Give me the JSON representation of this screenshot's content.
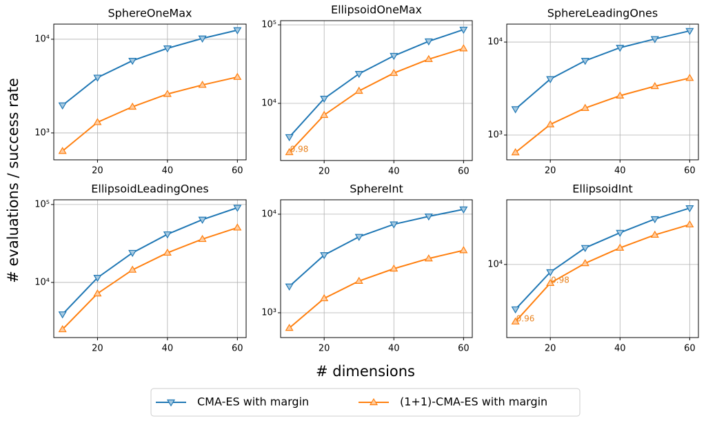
{
  "figure": {
    "xlabel": "# dimensions",
    "ylabel": "# evaluations / success rate"
  },
  "chart_data": [
    {
      "type": "line",
      "title": "SphereOneMax",
      "x": [
        10,
        20,
        30,
        40,
        50,
        60
      ],
      "xlim": [
        7.5,
        62.5
      ],
      "xticks": [
        20,
        40,
        60
      ],
      "ylim": [
        516,
        14500
      ],
      "yticks": [
        {
          "value": 1000,
          "label": "10³"
        },
        {
          "value": 10000,
          "label": "10⁴"
        }
      ],
      "log_y": true,
      "grid": true,
      "series": [
        {
          "name": "CMA-ES with margin",
          "color": "#1f77b4",
          "marker": "triangle-down",
          "values": [
            1970,
            3900,
            5900,
            8000,
            10200,
            12500
          ]
        },
        {
          "name": "(1+1)-CMA-ES with margin",
          "color": "#ff7f0e",
          "marker": "triangle-up",
          "values": [
            640,
            1300,
            1900,
            2600,
            3250,
            3950
          ]
        }
      ]
    },
    {
      "type": "line",
      "title": "EllipsoidOneMax",
      "x": [
        10,
        20,
        30,
        40,
        50,
        60
      ],
      "xlim": [
        7.5,
        62.5
      ],
      "xticks": [
        20,
        40,
        60
      ],
      "ylim": [
        1870,
        113000
      ],
      "yticks": [
        {
          "value": 10000,
          "label": "10⁴"
        },
        {
          "value": 100000,
          "label": "10⁵"
        }
      ],
      "log_y": true,
      "grid": true,
      "series": [
        {
          "name": "CMA-ES with margin",
          "color": "#1f77b4",
          "marker": "triangle-down",
          "values": [
            3720,
            11500,
            23800,
            40300,
            61700,
            87000
          ]
        },
        {
          "name": "(1+1)-CMA-ES with margin",
          "color": "#ff7f0e",
          "marker": "triangle-up",
          "values": [
            2380,
            7100,
            14400,
            24300,
            36500,
            50000
          ]
        }
      ],
      "annotations": [
        {
          "text": "0.98",
          "x": 10,
          "y": 2380
        }
      ]
    },
    {
      "type": "line",
      "title": "SphereLeadingOnes",
      "x": [
        10,
        20,
        30,
        40,
        50,
        60
      ],
      "xlim": [
        7.5,
        62.5
      ],
      "xticks": [
        20,
        40,
        60
      ],
      "ylim": [
        541,
        15600
      ],
      "yticks": [
        {
          "value": 1000,
          "label": "10³"
        },
        {
          "value": 10000,
          "label": "10⁴"
        }
      ],
      "log_y": true,
      "grid": true,
      "series": [
        {
          "name": "CMA-ES with margin",
          "color": "#1f77b4",
          "marker": "triangle-down",
          "values": [
            1900,
            4000,
            6300,
            8700,
            10800,
            13200
          ]
        },
        {
          "name": "(1+1)-CMA-ES with margin",
          "color": "#ff7f0e",
          "marker": "triangle-up",
          "values": [
            650,
            1300,
            1950,
            2650,
            3350,
            4100
          ]
        }
      ]
    },
    {
      "type": "line",
      "title": "EllipsoidLeadingOnes",
      "x": [
        10,
        20,
        30,
        40,
        50,
        60
      ],
      "xlim": [
        7.5,
        62.5
      ],
      "xticks": [
        20,
        40,
        60
      ],
      "ylim": [
        1960,
        115000
      ],
      "yticks": [
        {
          "value": 10000,
          "label": "10⁴"
        },
        {
          "value": 100000,
          "label": "10⁵"
        }
      ],
      "log_y": true,
      "grid": true,
      "series": [
        {
          "name": "CMA-ES with margin",
          "color": "#1f77b4",
          "marker": "triangle-down",
          "values": [
            3900,
            11500,
            24000,
            41500,
            64000,
            91000
          ]
        },
        {
          "name": "(1+1)-CMA-ES with margin",
          "color": "#ff7f0e",
          "marker": "triangle-up",
          "values": [
            2500,
            7200,
            14500,
            24000,
            36000,
            50500
          ]
        }
      ]
    },
    {
      "type": "line",
      "title": "SphereInt",
      "x": [
        10,
        20,
        30,
        40,
        50,
        60
      ],
      "xlim": [
        7.5,
        62.5
      ],
      "xticks": [
        20,
        40,
        60
      ],
      "ylim": [
        560,
        14000
      ],
      "yticks": [
        {
          "value": 1000,
          "label": "10³"
        },
        {
          "value": 10000,
          "label": "10⁴"
        }
      ],
      "log_y": true,
      "grid": true,
      "series": [
        {
          "name": "CMA-ES with margin",
          "color": "#1f77b4",
          "marker": "triangle-down",
          "values": [
            1850,
            3850,
            5900,
            7900,
            9500,
            11200
          ]
        },
        {
          "name": "(1+1)-CMA-ES with margin",
          "color": "#ff7f0e",
          "marker": "triangle-up",
          "values": [
            700,
            1400,
            2100,
            2800,
            3550,
            4300
          ]
        }
      ]
    },
    {
      "type": "line",
      "title": "EllipsoidInt",
      "x": [
        10,
        20,
        30,
        40,
        50,
        60
      ],
      "xlim": [
        7.5,
        62.5
      ],
      "xticks": [
        20,
        40,
        60
      ],
      "ylim": [
        1680,
        48500
      ],
      "yticks": [
        {
          "value": 10000,
          "label": "10⁴"
        }
      ],
      "log_y": true,
      "grid": true,
      "series": [
        {
          "name": "CMA-ES with margin",
          "color": "#1f77b4",
          "marker": "triangle-down",
          "values": [
            3350,
            8300,
            15000,
            21700,
            30300,
            39600
          ]
        },
        {
          "name": "(1+1)-CMA-ES with margin",
          "color": "#ff7f0e",
          "marker": "triangle-up",
          "values": [
            2480,
            6350,
            10300,
            15000,
            20600,
            26500
          ]
        }
      ],
      "annotations": [
        {
          "text": "0.98",
          "x": 20,
          "y": 6350
        },
        {
          "text": "0.96",
          "x": 10,
          "y": 2480
        }
      ]
    }
  ]
}
